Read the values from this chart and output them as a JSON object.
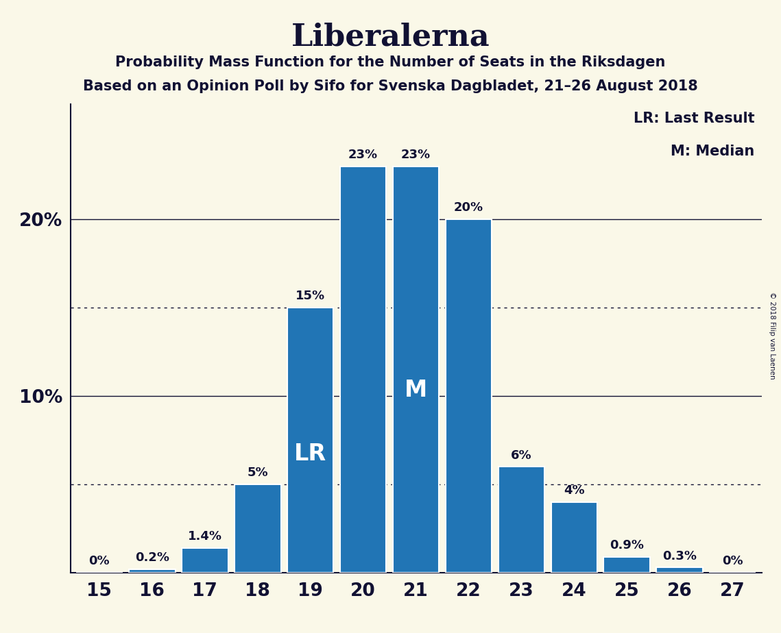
{
  "title": "Liberalerna",
  "subtitle1": "Probability Mass Function for the Number of Seats in the Riksdagen",
  "subtitle2": "Based on an Opinion Poll by Sifo for Svenska Dagbladet, 21–26 August 2018",
  "copyright": "© 2018 Filip van Laenen",
  "legend_lr": "LR: Last Result",
  "legend_m": "M: Median",
  "categories": [
    15,
    16,
    17,
    18,
    19,
    20,
    21,
    22,
    23,
    24,
    25,
    26,
    27
  ],
  "values": [
    0.0,
    0.2,
    1.4,
    5.0,
    15.0,
    23.0,
    23.0,
    20.0,
    6.0,
    4.0,
    0.9,
    0.3,
    0.0
  ],
  "labels": [
    "0%",
    "0.2%",
    "1.4%",
    "5%",
    "15%",
    "23%",
    "23%",
    "20%",
    "6%",
    "4%",
    "0.9%",
    "0.3%",
    "0%"
  ],
  "bar_color": "#2175b5",
  "background_color": "#faf8e8",
  "text_color": "#111133",
  "lr_bar": 19,
  "median_bar": 21,
  "ylim": [
    0,
    26.5
  ],
  "dotted_lines": [
    5,
    15
  ],
  "solid_lines": [
    10,
    20
  ],
  "title_fontsize": 32,
  "subtitle_fontsize": 15,
  "ytick_fontsize": 19,
  "xtick_fontsize": 19,
  "label_fontsize": 13,
  "inside_label_fontsize": 24
}
